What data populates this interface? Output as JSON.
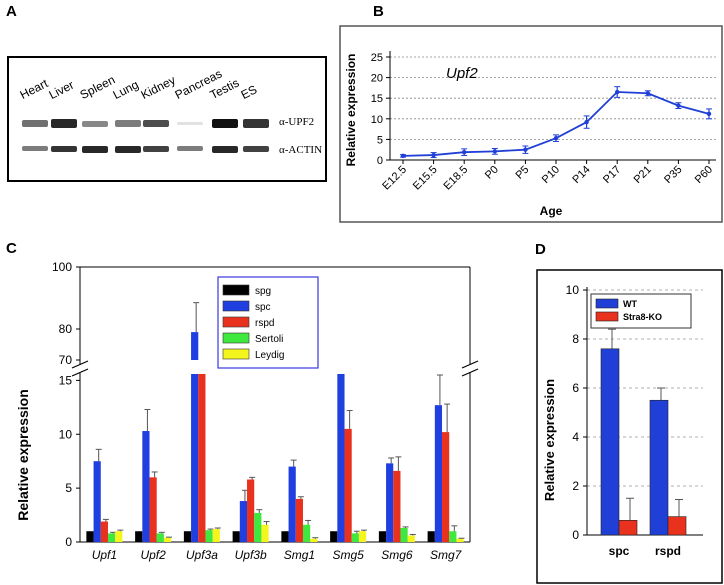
{
  "panels": {
    "A": {
      "letter": "A",
      "lanes": [
        "Heart",
        "Liver",
        "Spleen",
        "Lung",
        "Kidney",
        "Pancreas",
        "Testis",
        "ES"
      ],
      "bands": [
        "α-UPF2",
        "α-ACTIN"
      ],
      "upf2_intensity": [
        0.6,
        0.9,
        0.5,
        0.55,
        0.75,
        0.08,
        1.0,
        0.85
      ],
      "actin_intensity": [
        0.55,
        0.85,
        0.9,
        0.9,
        0.8,
        0.55,
        0.9,
        0.8
      ]
    },
    "B": {
      "letter": "B"
    },
    "C": {
      "letter": "C"
    },
    "D": {
      "letter": "D"
    }
  },
  "chart_data": [
    {
      "id": "B",
      "type": "line",
      "title": "Upf2",
      "xlabel": "Age",
      "ylabel": "Relative expression",
      "categories": [
        "E12.5",
        "E15.5",
        "E18.5",
        "P0",
        "P5",
        "P10",
        "P14",
        "P17",
        "P21",
        "P35",
        "P60"
      ],
      "values": [
        1.0,
        1.2,
        1.9,
        2.1,
        2.5,
        5.3,
        9.2,
        16.5,
        16.2,
        13.2,
        11.2
      ],
      "errors": [
        0.3,
        0.6,
        0.8,
        0.7,
        0.9,
        0.8,
        1.5,
        1.3,
        0.6,
        0.7,
        1.2
      ],
      "ylim": [
        0,
        25
      ],
      "yticks": [
        0,
        5,
        10,
        15,
        20,
        25
      ],
      "grid": true,
      "color": "#1f3fd6"
    },
    {
      "id": "C",
      "type": "bar",
      "ylabel": "Relative expression",
      "categories": [
        "Upf1",
        "Upf2",
        "Upf3a",
        "Upf3b",
        "Smg1",
        "Smg5",
        "Smg6",
        "Smg7"
      ],
      "series": [
        {
          "name": "spg",
          "color": "#000000",
          "values": [
            1,
            1,
            1,
            1,
            1,
            1,
            1,
            1
          ],
          "errors": [
            0,
            0,
            0,
            0,
            0,
            0,
            0,
            0
          ]
        },
        {
          "name": "spc",
          "color": "#1f3fe0",
          "values": [
            7.5,
            10.3,
            79,
            3.8,
            7.0,
            15.8,
            7.3,
            12.7
          ],
          "errors": [
            1.1,
            2.0,
            9.5,
            1.0,
            0.6,
            0,
            0.5,
            2.8
          ]
        },
        {
          "name": "rspd",
          "color": "#e8321e",
          "values": [
            1.9,
            6.0,
            15.8,
            5.8,
            4.0,
            10.5,
            6.6,
            10.2
          ],
          "errors": [
            0.2,
            0.5,
            0,
            0.2,
            0.2,
            1.7,
            1.3,
            2.6
          ]
        },
        {
          "name": "Sertoli",
          "color": "#3ee83e",
          "values": [
            0.8,
            0.8,
            1.1,
            2.7,
            1.6,
            0.8,
            1.3,
            1.0
          ],
          "errors": [
            0.1,
            0.1,
            0.1,
            0.3,
            0.4,
            0.2,
            0.1,
            0.5
          ]
        },
        {
          "name": "Leydig",
          "color": "#f5f51e",
          "values": [
            1.0,
            0.4,
            1.2,
            1.6,
            0.3,
            1.0,
            0.6,
            0.3
          ],
          "errors": [
            0.1,
            0.05,
            0.1,
            0.3,
            0.1,
            0.1,
            0.1,
            0.05
          ]
        }
      ],
      "axis_break": [
        15.5,
        70
      ],
      "lower_range": [
        0,
        15.5
      ],
      "upper_range": [
        70,
        100
      ],
      "yticks_lower": [
        0,
        5,
        10,
        15
      ],
      "yticks_upper": [
        70,
        80,
        100
      ],
      "legend_position": "top-center"
    },
    {
      "id": "D",
      "type": "bar",
      "ylabel": "Relative expression",
      "categories": [
        "spc",
        "rspd"
      ],
      "series": [
        {
          "name": "WT",
          "color": "#1f3fd6",
          "values": [
            7.6,
            5.5
          ],
          "errors": [
            0.8,
            0.5
          ]
        },
        {
          "name": "Stra8-KO",
          "color": "#e8321e",
          "values": [
            0.6,
            0.75
          ],
          "errors": [
            0.9,
            0.7
          ]
        }
      ],
      "ylim": [
        0,
        10
      ],
      "yticks": [
        0,
        2,
        4,
        6,
        8,
        10
      ],
      "grid": true,
      "legend_position": "top-left"
    }
  ]
}
